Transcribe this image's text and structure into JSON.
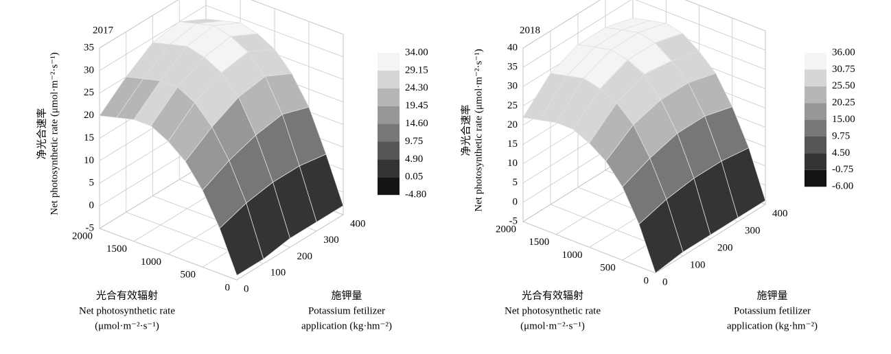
{
  "chart_data": [
    {
      "type": "surface",
      "title": "2017",
      "zlabel": [
        "净光合速率",
        "Net photosynthetic rate (μmol·m⁻²·s⁻¹)"
      ],
      "xlabel": [
        "光合有效辐射",
        "Net photosynthetic rate",
        "(μmol·m⁻²·s⁻¹)"
      ],
      "ylabel": [
        "施钾量",
        "Potassium fetilizer",
        "application (kg·hm⁻²)"
      ],
      "x": [
        0,
        250,
        500,
        750,
        1000,
        1250,
        1500,
        1750,
        2000
      ],
      "y": [
        0,
        100,
        200,
        300,
        400
      ],
      "values": [
        [
          -4,
          5,
          12,
          17,
          20,
          22,
          22,
          21,
          20
        ],
        [
          -4,
          7,
          15,
          21,
          25,
          27,
          27,
          26,
          25
        ],
        [
          -3,
          8,
          17,
          24,
          28,
          30,
          31,
          30,
          29
        ],
        [
          -3,
          8,
          18,
          25,
          29,
          31,
          32,
          31,
          30
        ],
        [
          -3,
          7,
          16,
          22,
          26,
          28,
          29,
          28,
          27
        ]
      ],
      "xlim": [
        0,
        2000
      ],
      "xticks": [
        0,
        500,
        1000,
        1500,
        2000
      ],
      "ylim": [
        0,
        400
      ],
      "yticks": [
        0,
        100,
        200,
        300,
        400
      ],
      "zlim": [
        -5,
        35
      ],
      "zticks": [
        -5,
        0,
        5,
        10,
        15,
        20,
        25,
        30,
        35
      ],
      "colorbar": {
        "levels": [
          {
            "value": 34,
            "label": "34.00"
          },
          {
            "value": 29.15,
            "label": "29.15"
          },
          {
            "value": 24.3,
            "label": "24.30"
          },
          {
            "value": 19.45,
            "label": "19.45"
          },
          {
            "value": 14.6,
            "label": "14.60"
          },
          {
            "value": 9.75,
            "label": "9.75"
          },
          {
            "value": 4.9,
            "label": "4.90"
          },
          {
            "value": 0.05,
            "label": "0.05"
          },
          {
            "value": -4.8,
            "label": "-4.80"
          }
        ],
        "colors": [
          "#f4f4f4",
          "#d6d6d6",
          "#b6b6b6",
          "#979797",
          "#777777",
          "#565656",
          "#343434",
          "#141414"
        ]
      }
    },
    {
      "type": "surface",
      "title": "2018",
      "zlabel": [
        "净光合速率",
        "Net photosynthetic rate (μmol·m⁻²·s⁻¹)"
      ],
      "xlabel": [
        "光合有效辐射",
        "Net photosynthetic rate",
        "(μmol·m⁻²·s⁻¹)"
      ],
      "ylabel": [
        "施钾量",
        "Potassium fetilizer",
        "application (kg·hm⁻²)"
      ],
      "x": [
        0,
        250,
        500,
        750,
        1000,
        1250,
        1500,
        1750,
        2000
      ],
      "y": [
        0,
        100,
        200,
        300,
        400
      ],
      "values": [
        [
          -5,
          6,
          14,
          19,
          22,
          24,
          24,
          23,
          22
        ],
        [
          -4,
          8,
          17,
          24,
          28,
          30,
          31,
          30,
          29
        ],
        [
          -4,
          9,
          19,
          26,
          31,
          33,
          34,
          33,
          32
        ],
        [
          -4,
          9,
          19,
          26,
          30,
          33,
          34,
          33,
          32
        ],
        [
          -4,
          8,
          17,
          24,
          28,
          31,
          32,
          31,
          30
        ]
      ],
      "xlim": [
        0,
        2000
      ],
      "xticks": [
        0,
        500,
        1000,
        1500,
        2000
      ],
      "ylim": [
        0,
        400
      ],
      "yticks": [
        0,
        100,
        200,
        300,
        400
      ],
      "zlim": [
        -5,
        40
      ],
      "zticks": [
        -5,
        0,
        5,
        10,
        15,
        20,
        25,
        30,
        35,
        40
      ],
      "colorbar": {
        "levels": [
          {
            "value": 36,
            "label": "36.00"
          },
          {
            "value": 30.75,
            "label": "30.75"
          },
          {
            "value": 25.5,
            "label": "25.50"
          },
          {
            "value": 20.25,
            "label": "20.25"
          },
          {
            "value": 15,
            "label": "15.00"
          },
          {
            "value": 9.75,
            "label": "9.75"
          },
          {
            "value": 4.5,
            "label": "4.50"
          },
          {
            "value": -0.75,
            "label": "-0.75"
          },
          {
            "value": -6,
            "label": "-6.00"
          }
        ],
        "colors": [
          "#f4f4f4",
          "#d6d6d6",
          "#b6b6b6",
          "#979797",
          "#777777",
          "#565656",
          "#343434",
          "#141414"
        ]
      }
    }
  ]
}
